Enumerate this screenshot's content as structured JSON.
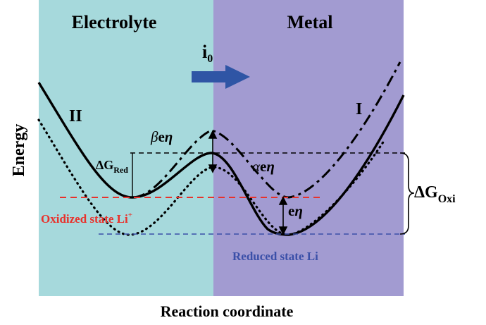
{
  "regions": {
    "left_label": "Electrolyte",
    "right_label": "Metal",
    "left_color": "#a6d9dc",
    "right_color": "#a29bd1"
  },
  "current": {
    "label_main": "i",
    "label_sub": "0",
    "arrow_color": "#2f55a5"
  },
  "curves": {
    "left_label": "II",
    "right_label": "I"
  },
  "annotations": {
    "beta": {
      "greek": "β",
      "rest": "e",
      "eta": "η"
    },
    "alpha": {
      "greek": "α",
      "rest": "e",
      "eta": "η"
    },
    "eeta": {
      "rest": "e",
      "eta": "η"
    },
    "dg_red": {
      "main": "ΔG",
      "sub": "Red"
    },
    "dg_oxi": {
      "main": "ΔG",
      "sub": "Oxi"
    },
    "oxidized": "Oxidized state Li",
    "oxidized_sup": "+",
    "reduced": "Reduced state Li"
  },
  "colors": {
    "oxidized": "#e8322c",
    "reduced": "#3a4fa8",
    "ink": "#000000"
  },
  "axes": {
    "x_label": "Reaction coordinate",
    "y_label": "Energy"
  }
}
